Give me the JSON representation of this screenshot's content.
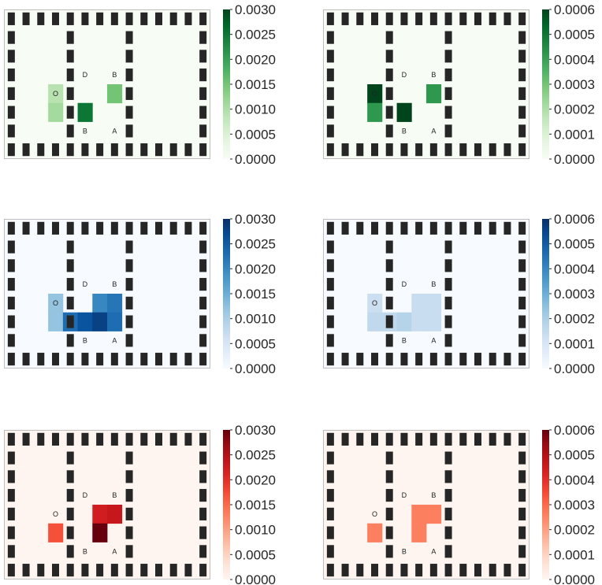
{
  "chart_data": [
    {
      "type": "heatmap",
      "cmap": "Greens",
      "grid": [
        14,
        8
      ],
      "vmax": 0.003,
      "colorbar_ticks": [
        "0.0030",
        "0.0025",
        "0.0020",
        "0.0015",
        "0.0010",
        "0.0005",
        "0.0000"
      ],
      "labels": [
        "O",
        "D",
        "B",
        "D",
        "B",
        "A",
        "D"
      ],
      "cells": [
        {
          "col": 3,
          "row": 4,
          "value": 0.0009
        },
        {
          "col": 3,
          "row": 5,
          "value": 0.0011
        },
        {
          "col": 5,
          "row": 5,
          "value": 0.0025
        },
        {
          "col": 7,
          "row": 4,
          "value": 0.0015
        }
      ]
    },
    {
      "type": "heatmap",
      "cmap": "Greens",
      "grid": [
        14,
        8
      ],
      "vmax": 0.0006,
      "colorbar_ticks": [
        "0.0006",
        "0.0005",
        "0.0004",
        "0.0003",
        "0.0002",
        "0.0001",
        "0.0000"
      ],
      "labels": [
        "O",
        "D",
        "B",
        "D",
        "B",
        "A",
        "D"
      ],
      "cells": [
        {
          "col": 3,
          "row": 4,
          "value": 0.0006
        },
        {
          "col": 3,
          "row": 5,
          "value": 0.00042
        },
        {
          "col": 5,
          "row": 5,
          "value": 0.0006
        },
        {
          "col": 7,
          "row": 4,
          "value": 0.00042
        }
      ]
    },
    {
      "type": "heatmap",
      "cmap": "Blues",
      "grid": [
        14,
        8
      ],
      "vmax": 0.003,
      "colorbar_ticks": [
        "0.0030",
        "0.0025",
        "0.0020",
        "0.0015",
        "0.0010",
        "0.0005",
        "0.0000"
      ],
      "labels": [
        "O",
        "D",
        "B",
        "D",
        "B",
        "A",
        "D"
      ],
      "cells": [
        {
          "col": 3,
          "row": 4,
          "value": 0.0012
        },
        {
          "col": 3,
          "row": 5,
          "value": 0.0012
        },
        {
          "col": 4,
          "row": 5,
          "value": 0.0023
        },
        {
          "col": 5,
          "row": 5,
          "value": 0.0026
        },
        {
          "col": 6,
          "row": 4,
          "value": 0.002
        },
        {
          "col": 6,
          "row": 5,
          "value": 0.0028
        },
        {
          "col": 7,
          "row": 4,
          "value": 0.0022
        },
        {
          "col": 7,
          "row": 5,
          "value": 0.0023
        }
      ]
    },
    {
      "type": "heatmap",
      "cmap": "Blues",
      "grid": [
        14,
        8
      ],
      "vmax": 0.0006,
      "colorbar_ticks": [
        "0.0006",
        "0.0005",
        "0.0004",
        "0.0003",
        "0.0002",
        "0.0001",
        "0.0000"
      ],
      "labels": [
        "O",
        "D",
        "B",
        "D",
        "B",
        "A",
        "D"
      ],
      "cells": [
        {
          "col": 3,
          "row": 4,
          "value": 0.00013
        },
        {
          "col": 3,
          "row": 5,
          "value": 0.00016
        },
        {
          "col": 4,
          "row": 5,
          "value": 0.00016
        },
        {
          "col": 5,
          "row": 5,
          "value": 0.00018
        },
        {
          "col": 6,
          "row": 4,
          "value": 0.00014
        },
        {
          "col": 6,
          "row": 5,
          "value": 0.00014
        },
        {
          "col": 7,
          "row": 4,
          "value": 0.00014
        },
        {
          "col": 7,
          "row": 5,
          "value": 0.00014
        }
      ]
    },
    {
      "type": "heatmap",
      "cmap": "Reds",
      "grid": [
        14,
        8
      ],
      "vmax": 0.003,
      "colorbar_ticks": [
        "0.0030",
        "0.0025",
        "0.0020",
        "0.0015",
        "0.0010",
        "0.0005",
        "0.0000"
      ],
      "labels": [
        "O",
        "D",
        "B",
        "D",
        "B",
        "A",
        "D"
      ],
      "cells": [
        {
          "col": 3,
          "row": 5,
          "value": 0.0017
        },
        {
          "col": 6,
          "row": 4,
          "value": 0.0022
        },
        {
          "col": 7,
          "row": 4,
          "value": 0.0023
        },
        {
          "col": 6,
          "row": 5,
          "value": 0.003
        }
      ]
    },
    {
      "type": "heatmap",
      "cmap": "Reds",
      "grid": [
        14,
        8
      ],
      "vmax": 0.0006,
      "colorbar_ticks": [
        "0.0006",
        "0.0005",
        "0.0004",
        "0.0003",
        "0.0002",
        "0.0001",
        "0.0000"
      ],
      "labels": [
        "O",
        "D",
        "B",
        "D",
        "B",
        "A",
        "D"
      ],
      "cells": [
        {
          "col": 3,
          "row": 5,
          "value": 0.00026
        },
        {
          "col": 6,
          "row": 4,
          "value": 0.00026
        },
        {
          "col": 7,
          "row": 4,
          "value": 0.00026
        },
        {
          "col": 6,
          "row": 5,
          "value": 0.00026
        }
      ]
    }
  ]
}
